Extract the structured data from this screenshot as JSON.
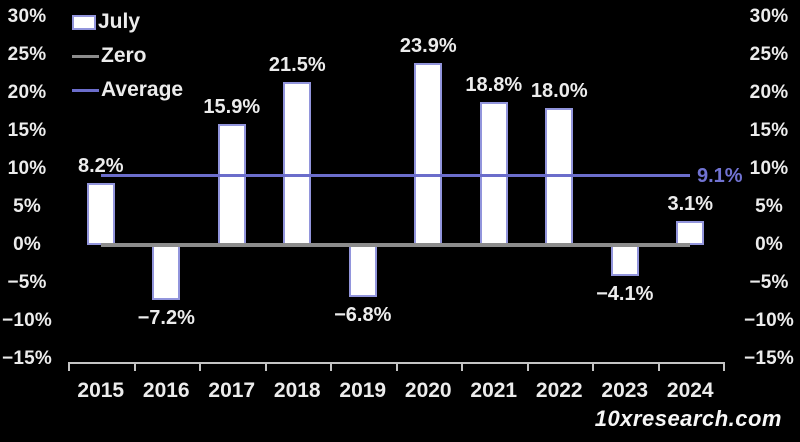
{
  "colors": {
    "background": "#000000",
    "bar_fill": "#ffffff",
    "bar_border": "#9295dc",
    "zero_line": "#8c8c8c",
    "average_line": "#6b6dcb",
    "average_label_color": "#7173d2",
    "text": "#ececec",
    "axis": "#c4c4c4"
  },
  "legend": {
    "items": [
      {
        "label": "July"
      },
      {
        "label": "Zero"
      },
      {
        "label": "Average"
      }
    ]
  },
  "watermark": "10xresearch.com",
  "chart_data": {
    "type": "bar",
    "title": "",
    "xlabel": "",
    "ylabel": "",
    "categories": [
      "2015",
      "2016",
      "2017",
      "2018",
      "2019",
      "2020",
      "2021",
      "2022",
      "2023",
      "2024"
    ],
    "series": [
      {
        "name": "July",
        "values": [
          8.2,
          -7.2,
          15.9,
          21.5,
          -6.8,
          23.9,
          18.8,
          18.0,
          -4.1,
          3.1
        ]
      }
    ],
    "value_labels": [
      "8.2%",
      "−7.2%",
      "15.9%",
      "21.5%",
      "−6.8%",
      "23.9%",
      "18.8%",
      "18.0%",
      "−4.1%",
      "3.1%"
    ],
    "average": 9.1,
    "average_label": "9.1%",
    "zero": 0,
    "ylim": [
      -15,
      30
    ],
    "ytick_step": 5,
    "yticks_left": [
      "30%",
      "25%",
      "20%",
      "15%",
      "10%",
      "5%",
      "0%",
      "−5%",
      "−10%",
      "−15%"
    ],
    "yticks_right": [
      "30%",
      "25%",
      "20%",
      "15%",
      "10%",
      "5%",
      "0%",
      "−5%",
      "−10%",
      "−15%"
    ],
    "ytick_values": [
      30,
      25,
      20,
      15,
      10,
      5,
      0,
      -5,
      -10,
      -15
    ],
    "grid": false,
    "legend_position": "top-left"
  }
}
